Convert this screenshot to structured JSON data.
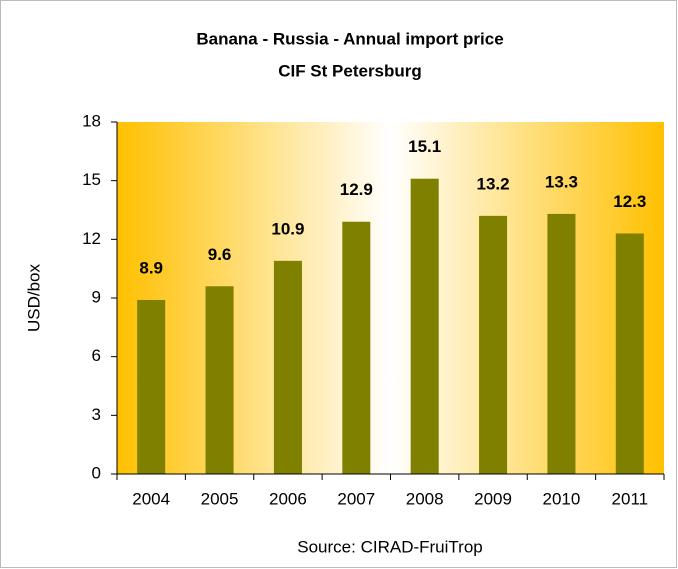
{
  "chart_data": {
    "type": "bar",
    "title": "Banana - Russia - Annual import price",
    "subtitle": "CIF St Petersburg",
    "categories": [
      "2004",
      "2005",
      "2006",
      "2007",
      "2008",
      "2009",
      "2010",
      "2011"
    ],
    "values": [
      8.9,
      9.6,
      10.9,
      12.9,
      15.1,
      13.2,
      13.3,
      12.3
    ],
    "color": "#808000",
    "ylabel": "USD/box",
    "ylim": [
      0,
      18
    ],
    "yticks": [
      0,
      3,
      6,
      9,
      12,
      15,
      18
    ],
    "source": "Source: CIRAD-FruiTrop"
  }
}
